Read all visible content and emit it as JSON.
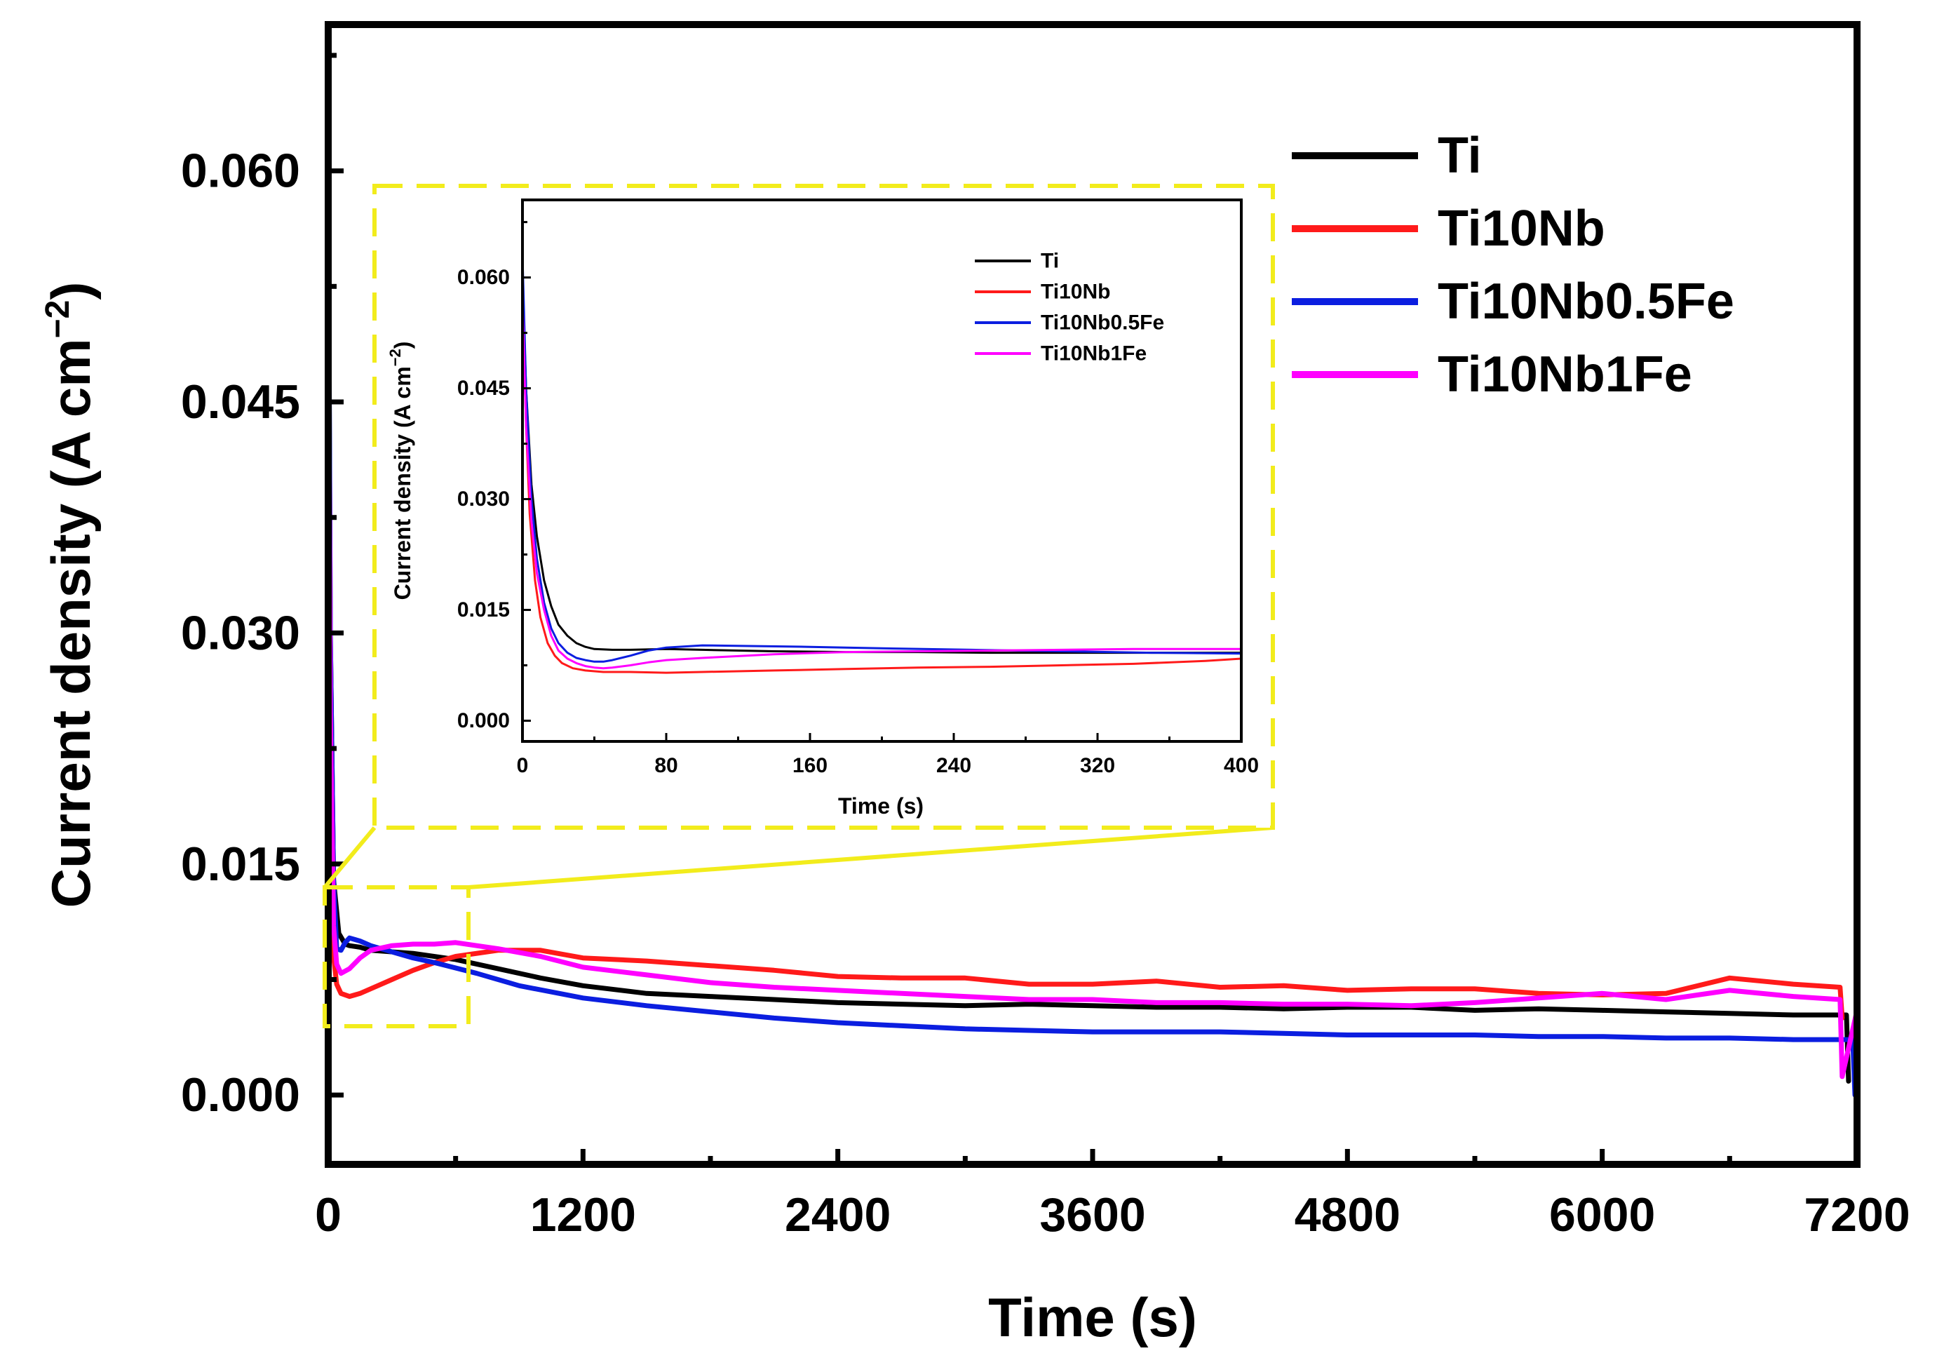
{
  "chart_data": [
    {
      "type": "line",
      "role": "main",
      "title": "",
      "xlabel": "Time (s)",
      "ylabel_main": "Current density (A cm",
      "ylabel_sup": "−2",
      "ylabel_end": ")",
      "xlim": [
        0,
        7200
      ],
      "ylim": [
        -0.0045,
        0.0695
      ],
      "xticks": [
        0,
        1200,
        2400,
        3600,
        4800,
        6000,
        7200
      ],
      "xtick_labels": [
        "0",
        "1200",
        "2400",
        "3600",
        "4800",
        "6000",
        "7200"
      ],
      "yticks": [
        0.0,
        0.015,
        0.03,
        0.045,
        0.06
      ],
      "ytick_labels": [
        "0.000",
        "0.015",
        "0.030",
        "0.045",
        "0.060"
      ],
      "legend_position": "top-right",
      "series": [
        {
          "name": "Ti",
          "color": "#000000",
          "x": [
            0,
            10,
            25,
            50,
            80,
            100,
            150,
            200,
            300,
            400,
            600,
            800,
            1000,
            1200,
            1500,
            1800,
            2100,
            2400,
            2700,
            3000,
            3300,
            3600,
            3900,
            4200,
            4500,
            4800,
            5100,
            5400,
            5700,
            6000,
            6300,
            6600,
            6900,
            7150,
            7160
          ],
          "y": [
            0.06,
            0.03,
            0.014,
            0.0105,
            0.0098,
            0.0097,
            0.0096,
            0.0094,
            0.0093,
            0.0092,
            0.0088,
            0.0082,
            0.0076,
            0.0071,
            0.0066,
            0.0064,
            0.0062,
            0.006,
            0.0059,
            0.0058,
            0.0059,
            0.0058,
            0.0057,
            0.0057,
            0.0056,
            0.0057,
            0.0057,
            0.0055,
            0.0056,
            0.0055,
            0.0054,
            0.0053,
            0.0052,
            0.0052,
            0.0009
          ]
        },
        {
          "name": "Ti10Nb",
          "color": "#ff1a1a",
          "x": [
            0,
            10,
            25,
            40,
            60,
            100,
            150,
            200,
            300,
            400,
            500,
            600,
            800,
            1000,
            1200,
            1500,
            1800,
            2100,
            2400,
            2700,
            3000,
            3300,
            3600,
            3900,
            4200,
            4500,
            4800,
            5100,
            5400,
            5700,
            6000,
            6300,
            6600,
            6900,
            7120,
            7130
          ],
          "y": [
            0.058,
            0.02,
            0.009,
            0.0072,
            0.0066,
            0.0064,
            0.0066,
            0.0069,
            0.0075,
            0.0081,
            0.0086,
            0.009,
            0.0094,
            0.0094,
            0.0089,
            0.0087,
            0.0084,
            0.0081,
            0.0077,
            0.0076,
            0.0076,
            0.0072,
            0.0072,
            0.0074,
            0.007,
            0.0071,
            0.0068,
            0.0069,
            0.0069,
            0.0066,
            0.0065,
            0.0066,
            0.0076,
            0.0072,
            0.007,
            0.005
          ]
        },
        {
          "name": "Ti10Nb0.5Fe",
          "color": "#0b1ee0",
          "x": [
            0,
            10,
            25,
            40,
            60,
            80,
            100,
            150,
            200,
            300,
            400,
            500,
            700,
            900,
            1200,
            1500,
            1800,
            2100,
            2400,
            2700,
            3000,
            3300,
            3600,
            3900,
            4200,
            4500,
            4800,
            5100,
            5400,
            5700,
            6000,
            6300,
            6600,
            6900,
            7180,
            7190
          ],
          "y": [
            0.063,
            0.03,
            0.014,
            0.0095,
            0.0094,
            0.0099,
            0.0102,
            0.01,
            0.0097,
            0.0093,
            0.0089,
            0.0086,
            0.0079,
            0.0071,
            0.0063,
            0.0058,
            0.0054,
            0.005,
            0.0047,
            0.0045,
            0.0043,
            0.0042,
            0.0041,
            0.0041,
            0.0041,
            0.004,
            0.0039,
            0.0039,
            0.0039,
            0.0038,
            0.0038,
            0.0037,
            0.0037,
            0.0036,
            0.0036,
            0.0
          ]
        },
        {
          "name": "Ti10Nb1Fe",
          "color": "#ff00ff",
          "x": [
            0,
            10,
            25,
            40,
            60,
            100,
            150,
            200,
            300,
            400,
            500,
            600,
            800,
            1000,
            1200,
            1500,
            1800,
            2100,
            2400,
            2700,
            3000,
            3300,
            3600,
            3900,
            4200,
            4500,
            4800,
            5100,
            5400,
            5700,
            6000,
            6300,
            6600,
            6900,
            7120,
            7130,
            7200
          ],
          "y": [
            0.057,
            0.025,
            0.011,
            0.0085,
            0.0079,
            0.0082,
            0.0089,
            0.0094,
            0.0097,
            0.0098,
            0.0098,
            0.0099,
            0.0095,
            0.009,
            0.0083,
            0.0078,
            0.0073,
            0.007,
            0.0068,
            0.0066,
            0.0064,
            0.0062,
            0.0062,
            0.006,
            0.006,
            0.0059,
            0.0059,
            0.0058,
            0.006,
            0.0063,
            0.0066,
            0.0062,
            0.0068,
            0.0064,
            0.0062,
            0.0012,
            0.0055
          ]
        }
      ]
    },
    {
      "type": "line",
      "role": "inset",
      "title": "",
      "xlabel": "Time (s)",
      "ylabel_main": "Current density (A cm",
      "ylabel_sup": "−2",
      "ylabel_end": ")",
      "xlim": [
        0,
        400
      ],
      "ylim": [
        -0.0028,
        0.0705
      ],
      "xticks": [
        0,
        80,
        160,
        240,
        320,
        400
      ],
      "xtick_labels": [
        "0",
        "80",
        "160",
        "240",
        "320",
        "400"
      ],
      "yticks": [
        0.0,
        0.015,
        0.03,
        0.045,
        0.06
      ],
      "ytick_labels": [
        "0.000",
        "0.015",
        "0.030",
        "0.045",
        "0.060"
      ],
      "legend_position": "top-right",
      "series": [
        {
          "name": "Ti",
          "color": "#000000",
          "x": [
            0,
            2,
            5,
            8,
            12,
            16,
            20,
            25,
            30,
            35,
            40,
            50,
            60,
            80,
            100,
            140,
            180,
            220,
            260,
            300,
            340,
            380,
            400
          ],
          "y": [
            0.06,
            0.045,
            0.032,
            0.025,
            0.019,
            0.0155,
            0.013,
            0.0115,
            0.0105,
            0.01,
            0.0097,
            0.0096,
            0.0096,
            0.0097,
            0.0096,
            0.0094,
            0.0093,
            0.0093,
            0.0092,
            0.0092,
            0.0092,
            0.0092,
            0.0092
          ]
        },
        {
          "name": "Ti10Nb",
          "color": "#ff1a1a",
          "x": [
            0,
            2,
            4,
            7,
            10,
            14,
            18,
            22,
            28,
            35,
            45,
            60,
            80,
            100,
            140,
            180,
            220,
            260,
            300,
            340,
            380,
            400
          ],
          "y": [
            0.058,
            0.04,
            0.028,
            0.019,
            0.014,
            0.0105,
            0.0088,
            0.0078,
            0.0071,
            0.0068,
            0.0066,
            0.0066,
            0.0065,
            0.0066,
            0.0068,
            0.007,
            0.0072,
            0.0073,
            0.0075,
            0.0077,
            0.0081,
            0.0084
          ]
        },
        {
          "name": "Ti10Nb0.5Fe",
          "color": "#0b1ee0",
          "x": [
            0,
            2,
            5,
            8,
            12,
            16,
            20,
            25,
            30,
            35,
            40,
            45,
            50,
            60,
            70,
            80,
            100,
            130,
            160,
            200,
            250,
            300,
            350,
            400
          ],
          "y": [
            0.063,
            0.045,
            0.03,
            0.022,
            0.016,
            0.0125,
            0.0105,
            0.0092,
            0.0085,
            0.0082,
            0.008,
            0.008,
            0.0082,
            0.0088,
            0.0095,
            0.0099,
            0.0102,
            0.0101,
            0.01,
            0.0098,
            0.0096,
            0.0094,
            0.0092,
            0.0091
          ]
        },
        {
          "name": "Ti10Nb1Fe",
          "color": "#ff00ff",
          "x": [
            0,
            2,
            5,
            8,
            12,
            16,
            20,
            25,
            30,
            35,
            40,
            45,
            50,
            60,
            70,
            80,
            100,
            140,
            180,
            220,
            260,
            300,
            340,
            380,
            400
          ],
          "y": [
            0.057,
            0.04,
            0.027,
            0.02,
            0.015,
            0.0115,
            0.0095,
            0.0084,
            0.0078,
            0.0074,
            0.0072,
            0.0071,
            0.0072,
            0.0075,
            0.0079,
            0.0082,
            0.0085,
            0.009,
            0.0093,
            0.0094,
            0.0095,
            0.0096,
            0.0097,
            0.0097,
            0.0097
          ]
        }
      ]
    }
  ],
  "colors": {
    "zoom_box": "#f2ec1c",
    "connector": "#f2ec1c"
  }
}
